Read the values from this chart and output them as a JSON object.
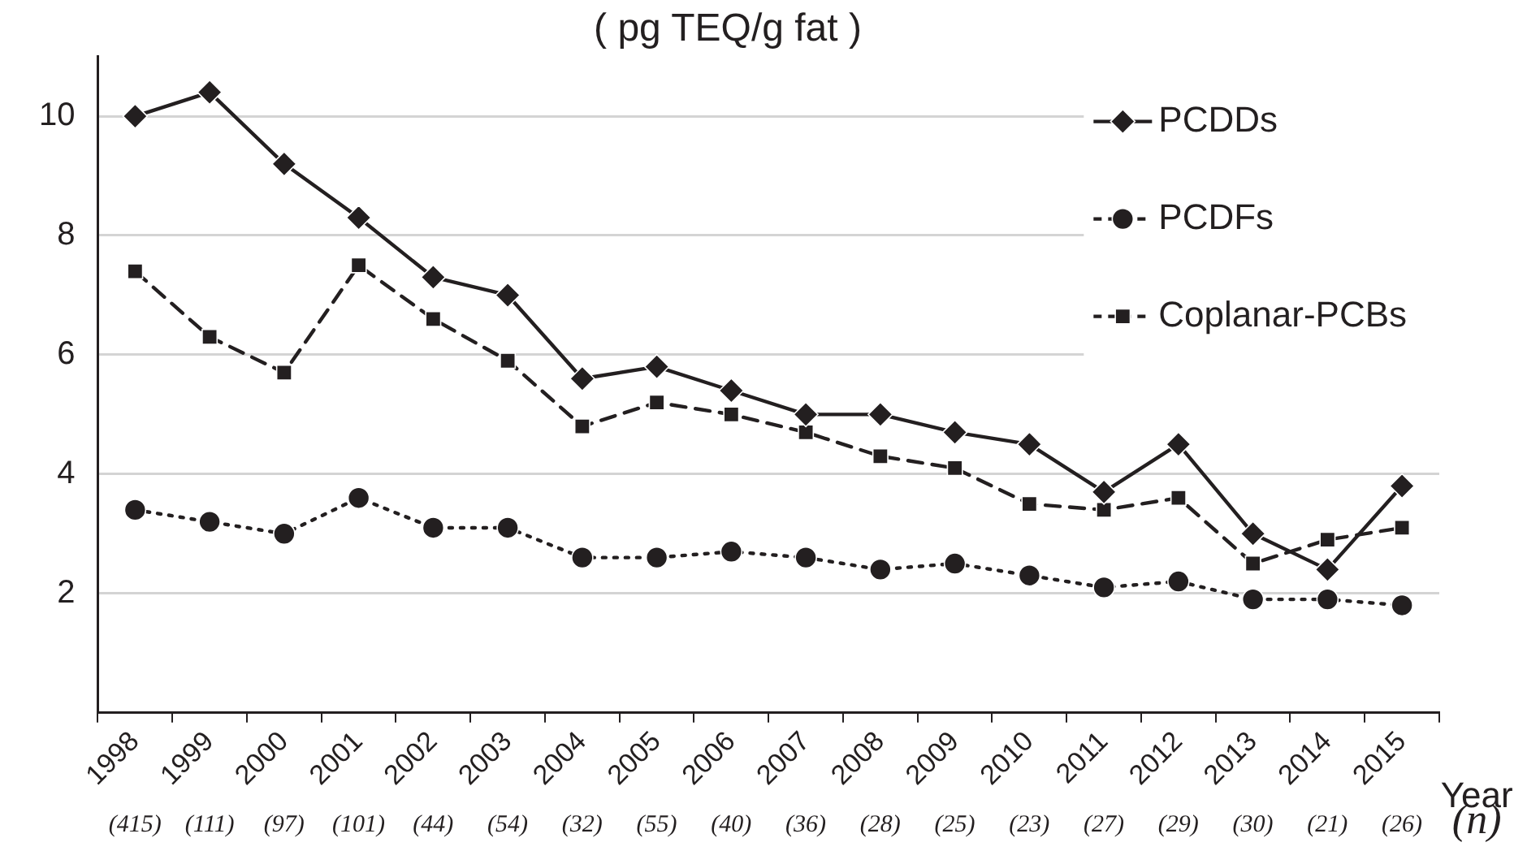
{
  "chart_data": {
    "type": "line",
    "title": "( pg TEQ/g fat )",
    "xlabel": "Year",
    "categories": [
      "1998",
      "1999",
      "2000",
      "2001",
      "2002",
      "2003",
      "2004",
      "2005",
      "2006",
      "2007",
      "2008",
      "2009",
      "2010",
      "2011",
      "2012",
      "2013",
      "2014",
      "2015"
    ],
    "series": [
      {
        "name": "PCDDs",
        "color": "#231f20",
        "marker": "diamond",
        "line_style": "solid",
        "values": [
          10.0,
          10.4,
          9.2,
          8.3,
          7.3,
          7.0,
          5.6,
          5.8,
          5.4,
          5.0,
          5.0,
          4.7,
          4.5,
          3.7,
          4.5,
          3.0,
          2.4,
          3.8
        ]
      },
      {
        "name": "PCDFs",
        "color": "#231f20",
        "marker": "circle",
        "line_style": "dotted",
        "values": [
          3.4,
          3.2,
          3.0,
          3.6,
          3.1,
          3.1,
          2.6,
          2.6,
          2.7,
          2.6,
          2.4,
          2.5,
          2.3,
          2.1,
          2.2,
          1.9,
          1.9,
          1.8
        ]
      },
      {
        "name": "Coplanar-PCBs",
        "color": "#231f20",
        "marker": "square",
        "line_style": "dashed",
        "values": [
          7.4,
          6.3,
          5.7,
          7.5,
          6.6,
          5.9,
          4.8,
          5.2,
          5.0,
          4.7,
          4.3,
          4.1,
          3.5,
          3.4,
          3.6,
          2.5,
          2.9,
          3.1
        ]
      }
    ],
    "ylim": [
      0,
      11
    ],
    "yticks": [
      2,
      4,
      6,
      8,
      10
    ],
    "grid": "y",
    "legend": "top right",
    "annotations": [
      "(415)",
      "(111)",
      "(97)",
      "(101)",
      "(44)",
      "(54)",
      "(32)",
      "(55)",
      "(40)",
      "(36)",
      "(28)",
      "(25)",
      "(23)",
      "(27)",
      "(29)",
      "(30)",
      "(21)",
      "(26)",
      "(n)"
    ]
  }
}
